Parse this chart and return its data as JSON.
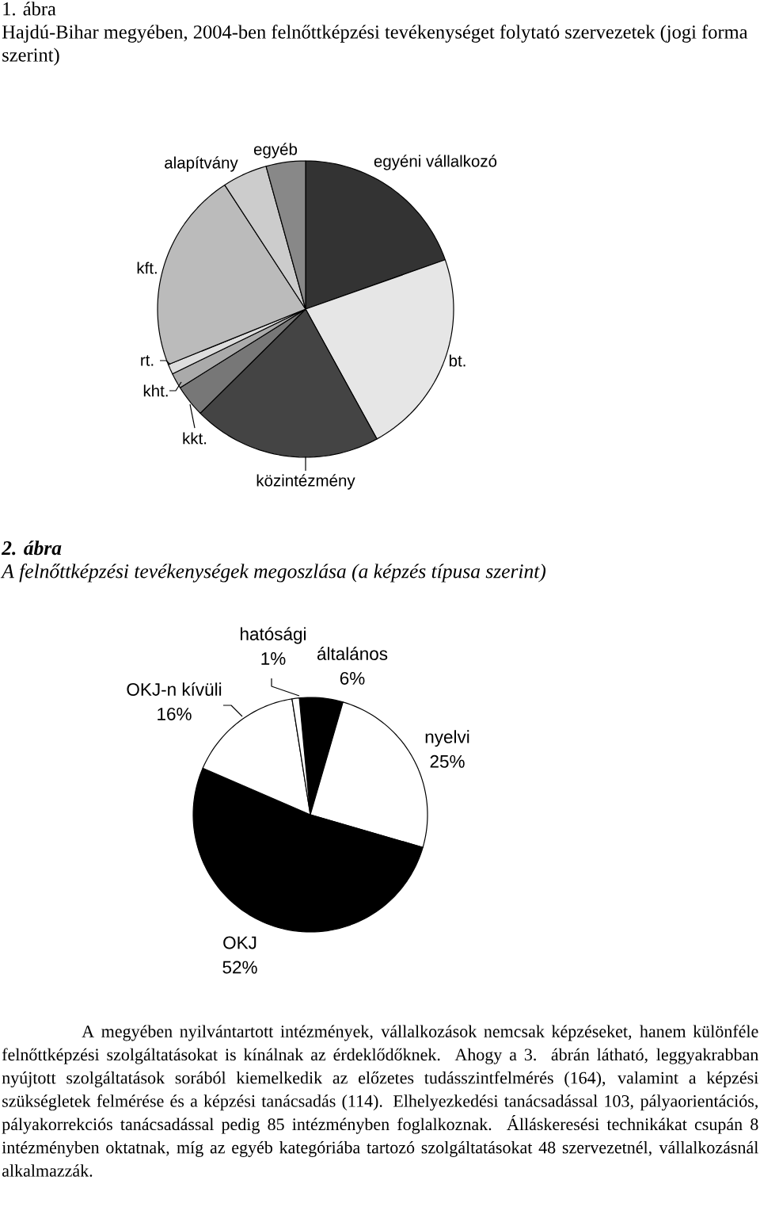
{
  "chart_data": [
    {
      "type": "pie",
      "title": "1. ábra",
      "subtitle": "Hajdú-Bihar megyében, 2004-ben felnőttképzési tevékenységet folytató szervezetek (jogi forma szerint)",
      "categories": [
        "egyéni vállalkozó",
        "bt.",
        "közintézmény",
        "kkt.",
        "kht.",
        "rt.",
        "kft.",
        "alapítvány",
        "egyéb"
      ],
      "values": [
        19.6,
        22.4,
        20.6,
        3.5,
        1.7,
        1.1,
        21.9,
        4.9,
        4.3
      ],
      "colors": [
        "#333333",
        "#e6e6e6",
        "#444444",
        "#777777",
        "#aaaaaa",
        "#dddddd",
        "#bbbbbb",
        "#cccccc",
        "#888888"
      ]
    },
    {
      "type": "pie",
      "title": "2. ábra",
      "subtitle": "A felnőttképzési tevékenységek megoszlása (a képzés típusa szerint)",
      "categories": [
        "általános",
        "nyelvi",
        "OKJ",
        "OKJ-n kívüli",
        "hatósági"
      ],
      "values": [
        6,
        25,
        52,
        16,
        1
      ],
      "value_labels": [
        "6%",
        "25%",
        "52%",
        "16%",
        "1%"
      ],
      "colors": [
        "#000000",
        "#ffffff",
        "#000000",
        "#ffffff",
        "#ffffff"
      ],
      "annotations": [
        "A megyében nyilvántartott intézmények, vállalkozások nemcsak képzéseket, hanem különféle felnőttképzési szolgáltatásokat is kínálnak az érdeklődőknek. Ahogy a 3. ábrán látható, leggyakrabban nyújtott szolgáltatások sorából kiemelkedik az előzetes tudásszintfelmérés (164), valamint a képzési szükségletek felmérése és a képzési tanácsadás (114). Elhelyezkedési tanácsadással 103, pályaorientációs, pályakorrekciós tanácsadással pedig 85 intézményben foglalkoznak. Álláskeresési technikákat csupán 8 intézményben oktatnak, míg az egyéb kategóriába tartozó szolgáltatásokat 48 szervezetnél, vállalkozásnál alkalmazzák."
      ]
    }
  ]
}
